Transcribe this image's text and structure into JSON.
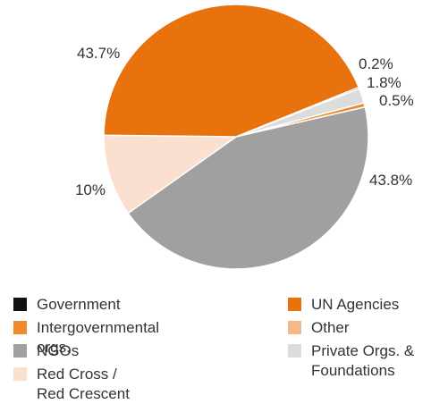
{
  "chart_data": {
    "type": "pie",
    "title": "",
    "series": [
      {
        "name": "Government",
        "value": 0.2,
        "label": "0.2%",
        "color": "#111111"
      },
      {
        "name": "Intergovernmental orgs.",
        "value": 0.5,
        "label": "0.5%",
        "color": "#ee8a2d"
      },
      {
        "name": "NGOs",
        "value": 43.8,
        "label": "43.8%",
        "color": "#a0a0a0"
      },
      {
        "name": "Red Cross /\nRed Crescent",
        "value": 10,
        "label": "10%",
        "color": "#fbe0d0"
      },
      {
        "name": "UN Agencies",
        "value": 43.7,
        "label": "43.7%",
        "color": "#e8720c"
      },
      {
        "name": "Other",
        "value": 0.0,
        "label": "",
        "color": "#f4b98a"
      },
      {
        "name": "Private Orgs. &\nFoundations",
        "value": 1.8,
        "label": "1.8%",
        "color": "#dcdcdc"
      }
    ],
    "legend_position": "bottom"
  }
}
